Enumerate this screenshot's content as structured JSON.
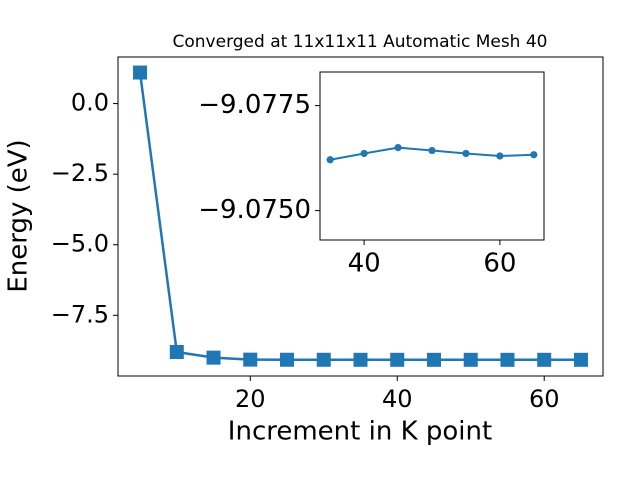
{
  "chart_data": [
    {
      "type": "line",
      "title": "Converged at 11x11x11 Automatic Mesh 40",
      "x_label": "Increment in K point",
      "y_label": "Energy (eV)",
      "x": [
        5,
        10,
        15,
        20,
        25,
        30,
        35,
        40,
        45,
        50,
        55,
        60,
        65
      ],
      "series": [
        {
          "color": "#1f77b4",
          "marker": "square",
          "values": [
            1.1,
            -8.8,
            -9.0,
            -9.07,
            -9.074,
            -9.075,
            -9.0762,
            -9.0764,
            -9.0765,
            -9.0764,
            -9.0764,
            -9.0763,
            -9.0763
          ]
        }
      ],
      "xlim": [
        2,
        68
      ],
      "ylim": [
        -9.65,
        1.65
      ],
      "xticks": [
        20,
        40,
        60
      ],
      "yticks": [
        {
          "value": 0.0,
          "label": "0.0"
        },
        {
          "value": -2.5,
          "label": "−2.5"
        },
        {
          "value": -5.0,
          "label": "−5.0"
        },
        {
          "value": -7.5,
          "label": "−7.5"
        }
      ]
    },
    {
      "type": "line",
      "x": [
        35,
        40,
        45,
        50,
        55,
        60,
        65
      ],
      "series": [
        {
          "color": "#1f77b4",
          "marker": "circle",
          "values": [
            -9.07621,
            -9.07636,
            -9.0765,
            -9.07643,
            -9.07636,
            -9.0763,
            -9.07633
          ]
        }
      ],
      "xlim": [
        33.5,
        66.5
      ],
      "ylim": [
        -9.0743,
        -9.0783
      ],
      "xticks": [
        40,
        60
      ],
      "yticks": [
        {
          "value": -9.0775,
          "label": "−9.0775"
        },
        {
          "value": -9.075,
          "label": "−9.0750"
        }
      ]
    }
  ]
}
